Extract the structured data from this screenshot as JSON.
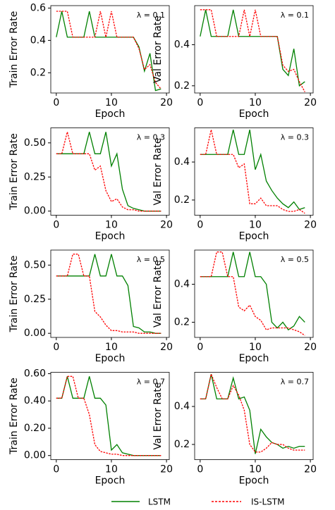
{
  "chart_data": [
    {
      "type": "line",
      "ylabel": "Train Error Rate",
      "xlabel": "Epoch",
      "annotation": "λ = 0.1",
      "x": [
        0,
        1,
        2,
        3,
        4,
        5,
        6,
        7,
        8,
        9,
        10,
        11,
        12,
        13,
        14,
        15,
        16,
        17,
        18,
        19
      ],
      "xlim": [
        -1,
        20.5
      ],
      "xticks": [
        0,
        10,
        20
      ],
      "ylim": [
        0.075,
        0.615
      ],
      "yticks": [
        0.2,
        0.4,
        0.6
      ],
      "series": [
        {
          "name": "LSTM",
          "color": "#008000",
          "values": [
            0.42,
            0.58,
            0.42,
            0.42,
            0.42,
            0.42,
            0.58,
            0.42,
            0.42,
            0.42,
            0.42,
            0.42,
            0.42,
            0.42,
            0.42,
            0.36,
            0.21,
            0.32,
            0.09,
            0.1
          ]
        },
        {
          "name": "IS-LSTM",
          "color": "#ff0000",
          "values": [
            0.58,
            0.58,
            0.58,
            0.42,
            0.42,
            0.42,
            0.42,
            0.42,
            0.58,
            0.42,
            0.58,
            0.42,
            0.42,
            0.42,
            0.42,
            0.35,
            0.22,
            0.25,
            0.14,
            0.1
          ]
        }
      ]
    },
    {
      "type": "line",
      "ylabel": "Val Error Rate",
      "xlabel": "Epoch",
      "annotation": "λ = 0.1",
      "x": [
        0,
        1,
        2,
        3,
        4,
        5,
        6,
        7,
        8,
        9,
        10,
        11,
        12,
        13,
        14,
        15,
        16,
        17,
        18,
        19
      ],
      "xlim": [
        -1,
        20.5
      ],
      "xticks": [
        0,
        10,
        20
      ],
      "ylim": [
        0.165,
        0.59
      ],
      "yticks": [
        0.2,
        0.4
      ],
      "series": [
        {
          "name": "LSTM",
          "color": "#008000",
          "values": [
            0.44,
            0.57,
            0.44,
            0.44,
            0.44,
            0.44,
            0.57,
            0.44,
            0.44,
            0.44,
            0.44,
            0.44,
            0.44,
            0.44,
            0.44,
            0.28,
            0.25,
            0.38,
            0.2,
            0.22
          ]
        },
        {
          "name": "IS-LSTM",
          "color": "#ff0000",
          "values": [
            0.57,
            0.57,
            0.57,
            0.44,
            0.44,
            0.44,
            0.44,
            0.44,
            0.57,
            0.44,
            0.57,
            0.44,
            0.44,
            0.44,
            0.44,
            0.3,
            0.27,
            0.28,
            0.22,
            0.17
          ]
        }
      ]
    },
    {
      "type": "line",
      "ylabel": "Train Error Rate",
      "xlabel": "Epoch",
      "annotation": "λ = 0.3",
      "x": [
        0,
        1,
        2,
        3,
        4,
        5,
        6,
        7,
        8,
        9,
        10,
        11,
        12,
        13,
        14,
        15,
        16,
        17,
        18,
        19
      ],
      "xlim": [
        -1,
        20.5
      ],
      "xticks": [
        0,
        10,
        20
      ],
      "ylim": [
        -0.03,
        0.61
      ],
      "yticks": [
        {
          "value": 0,
          "label": "0.00"
        },
        {
          "value": 0.25,
          "label": "0.25"
        },
        {
          "value": 0.5,
          "label": "0.50"
        }
      ],
      "series": [
        {
          "name": "LSTM",
          "color": "#008000",
          "values": [
            0.42,
            0.42,
            0.42,
            0.42,
            0.42,
            0.42,
            0.58,
            0.42,
            0.42,
            0.58,
            0.33,
            0.42,
            0.16,
            0.04,
            0.02,
            0.01,
            0,
            0,
            0,
            0
          ]
        },
        {
          "name": "IS-LSTM",
          "color": "#ff0000",
          "values": [
            0.42,
            0.42,
            0.58,
            0.42,
            0.42,
            0.42,
            0.42,
            0.3,
            0.33,
            0.15,
            0.07,
            0.09,
            0.03,
            0.01,
            0.01,
            0,
            0,
            0,
            0,
            0
          ]
        }
      ]
    },
    {
      "type": "line",
      "ylabel": "Val Error Rate",
      "xlabel": "Epoch",
      "annotation": "λ = 0.3",
      "x": [
        0,
        1,
        2,
        3,
        4,
        5,
        6,
        7,
        8,
        9,
        10,
        11,
        12,
        13,
        14,
        15,
        16,
        17,
        18,
        19
      ],
      "xlim": [
        -1,
        20.5
      ],
      "xticks": [
        0,
        10,
        20
      ],
      "ylim": [
        0.12,
        0.58
      ],
      "yticks": [
        0.2,
        0.4
      ],
      "series": [
        {
          "name": "LSTM",
          "color": "#008000",
          "values": [
            0.44,
            0.44,
            0.44,
            0.44,
            0.44,
            0.44,
            0.57,
            0.44,
            0.44,
            0.57,
            0.36,
            0.44,
            0.3,
            0.25,
            0.21,
            0.18,
            0.16,
            0.19,
            0.15,
            0.16
          ]
        },
        {
          "name": "IS-LSTM",
          "color": "#ff0000",
          "values": [
            0.44,
            0.44,
            0.57,
            0.44,
            0.44,
            0.44,
            0.44,
            0.37,
            0.39,
            0.18,
            0.18,
            0.21,
            0.17,
            0.17,
            0.17,
            0.15,
            0.14,
            0.14,
            0.15,
            0.13
          ]
        }
      ]
    },
    {
      "type": "line",
      "ylabel": "Train Error Rate",
      "xlabel": "Epoch",
      "annotation": "λ = 0.5",
      "x": [
        0,
        1,
        2,
        3,
        4,
        5,
        6,
        7,
        8,
        9,
        10,
        11,
        12,
        13,
        14,
        15,
        16,
        17,
        18,
        19
      ],
      "xlim": [
        -1,
        20.5
      ],
      "xticks": [
        0,
        10,
        20
      ],
      "ylim": [
        -0.03,
        0.61
      ],
      "yticks": [
        {
          "value": 0,
          "label": "0.00"
        },
        {
          "value": 0.25,
          "label": "0.25"
        },
        {
          "value": 0.5,
          "label": "0.50"
        }
      ],
      "series": [
        {
          "name": "LSTM",
          "color": "#008000",
          "values": [
            0.42,
            0.42,
            0.42,
            0.42,
            0.42,
            0.42,
            0.42,
            0.58,
            0.42,
            0.42,
            0.58,
            0.42,
            0.42,
            0.35,
            0.05,
            0.04,
            0.01,
            0.01,
            0,
            0
          ]
        },
        {
          "name": "IS-LSTM",
          "color": "#ff0000",
          "values": [
            0.42,
            0.42,
            0.42,
            0.58,
            0.58,
            0.42,
            0.42,
            0.16,
            0.12,
            0.06,
            0.02,
            0.02,
            0.01,
            0.01,
            0.01,
            0,
            0,
            0,
            0,
            0
          ]
        }
      ]
    },
    {
      "type": "line",
      "ylabel": "Val Error Rate",
      "xlabel": "Epoch",
      "annotation": "λ = 0.5",
      "x": [
        0,
        1,
        2,
        3,
        4,
        5,
        6,
        7,
        8,
        9,
        10,
        11,
        12,
        13,
        14,
        15,
        16,
        17,
        18,
        19
      ],
      "xlim": [
        -1,
        20.5
      ],
      "xticks": [
        0,
        10,
        20
      ],
      "ylim": [
        0.12,
        0.58
      ],
      "yticks": [
        0.2,
        0.4
      ],
      "series": [
        {
          "name": "LSTM",
          "color": "#008000",
          "values": [
            0.44,
            0.44,
            0.44,
            0.44,
            0.44,
            0.44,
            0.57,
            0.44,
            0.44,
            0.57,
            0.44,
            0.44,
            0.4,
            0.2,
            0.17,
            0.2,
            0.16,
            0.18,
            0.23,
            0.2
          ]
        },
        {
          "name": "IS-LSTM",
          "color": "#ff0000",
          "values": [
            0.44,
            0.44,
            0.44,
            0.57,
            0.57,
            0.44,
            0.44,
            0.28,
            0.26,
            0.29,
            0.23,
            0.21,
            0.16,
            0.17,
            0.17,
            0.17,
            0.17,
            0.16,
            0.15,
            0.13
          ]
        }
      ]
    },
    {
      "type": "line",
      "ylabel": "Train Error Rate",
      "xlabel": "Epoch",
      "annotation": "λ = 0.7",
      "x": [
        0,
        1,
        2,
        3,
        4,
        5,
        6,
        7,
        8,
        9,
        10,
        11,
        12,
        13,
        14,
        15,
        16,
        17,
        18,
        19
      ],
      "xlim": [
        -1,
        20.5
      ],
      "xticks": [
        0,
        10,
        20
      ],
      "ylim": [
        -0.03,
        0.61
      ],
      "yticks": [
        {
          "value": 0,
          "label": "0.00"
        },
        {
          "value": 0.2,
          "label": "0.20"
        },
        {
          "value": 0.4,
          "label": "0.40"
        },
        {
          "value": 0.6,
          "label": "0.60"
        }
      ],
      "series": [
        {
          "name": "LSTM",
          "color": "#008000",
          "values": [
            0.42,
            0.42,
            0.58,
            0.42,
            0.42,
            0.42,
            0.58,
            0.42,
            0.42,
            0.37,
            0.04,
            0.08,
            0.02,
            0.01,
            0,
            0,
            0,
            0,
            0,
            0
          ]
        },
        {
          "name": "IS-LSTM",
          "color": "#ff0000",
          "values": [
            0.42,
            0.42,
            0.58,
            0.58,
            0.42,
            0.42,
            0.3,
            0.08,
            0.03,
            0.02,
            0.01,
            0.01,
            0,
            0,
            0,
            0,
            0,
            0,
            0,
            0
          ]
        }
      ]
    },
    {
      "type": "line",
      "ylabel": "Val Error Rate",
      "xlabel": "Epoch",
      "annotation": "λ = 0.7",
      "x": [
        0,
        1,
        2,
        3,
        4,
        5,
        6,
        7,
        8,
        9,
        10,
        11,
        12,
        13,
        14,
        15,
        16,
        17,
        18,
        19
      ],
      "xlim": [
        -1,
        20.5
      ],
      "xticks": [
        0,
        10,
        20
      ],
      "ylim": [
        0.12,
        0.58
      ],
      "yticks": [
        0.2,
        0.4
      ],
      "series": [
        {
          "name": "LSTM",
          "color": "#008000",
          "values": [
            0.44,
            0.44,
            0.57,
            0.44,
            0.44,
            0.44,
            0.55,
            0.44,
            0.45,
            0.38,
            0.15,
            0.28,
            0.24,
            0.21,
            0.2,
            0.18,
            0.19,
            0.18,
            0.19,
            0.19
          ]
        },
        {
          "name": "IS-LSTM",
          "color": "#ff0000",
          "values": [
            0.44,
            0.44,
            0.57,
            0.5,
            0.44,
            0.44,
            0.51,
            0.46,
            0.38,
            0.2,
            0.16,
            0.16,
            0.18,
            0.21,
            0.2,
            0.2,
            0.18,
            0.17,
            0.17,
            0.17
          ]
        }
      ]
    }
  ]
}
